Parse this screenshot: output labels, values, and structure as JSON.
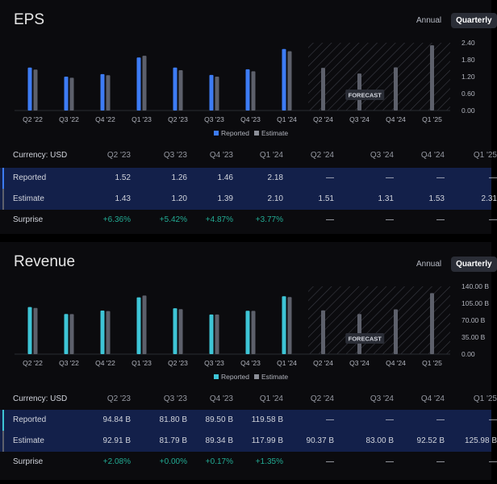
{
  "eps": {
    "title": "EPS",
    "toggle": {
      "annual": "Annual",
      "quarterly": "Quarterly"
    },
    "legend": {
      "reported": "Reported",
      "estimate": "Estimate"
    },
    "forecast_label": "FORECAST",
    "y_ticks": [
      "2.40",
      "1.80",
      "1.20",
      "0.60",
      "0.00"
    ],
    "table": {
      "currency": "Currency: USD",
      "columns": [
        "Q2 '23",
        "Q3 '23",
        "Q4 '23",
        "Q1 '24",
        "Q2 '24",
        "Q3 '24",
        "Q4 '24",
        "Q1 '25"
      ],
      "rows": [
        {
          "label": "Reported",
          "cells": [
            "1.52",
            "1.26",
            "1.46",
            "2.18",
            "—",
            "—",
            "—",
            "—"
          ]
        },
        {
          "label": "Estimate",
          "cells": [
            "1.43",
            "1.20",
            "1.39",
            "2.10",
            "1.51",
            "1.31",
            "1.53",
            "2.31"
          ]
        },
        {
          "label": "Surprise",
          "cells": [
            "+6.36%",
            "+5.42%",
            "+4.87%",
            "+3.77%",
            "—",
            "—",
            "—",
            "—"
          ]
        }
      ]
    }
  },
  "revenue": {
    "title": "Revenue",
    "toggle": {
      "annual": "Annual",
      "quarterly": "Quarterly"
    },
    "legend": {
      "reported": "Reported",
      "estimate": "Estimate"
    },
    "forecast_label": "FORECAST",
    "y_ticks": [
      "140.00 B",
      "105.00 B",
      "70.00 B",
      "35.00 B",
      "0.00"
    ],
    "table": {
      "currency": "Currency: USD",
      "columns": [
        "Q2 '23",
        "Q3 '23",
        "Q4 '23",
        "Q1 '24",
        "Q2 '24",
        "Q3 '24",
        "Q4 '24",
        "Q1 '25"
      ],
      "rows": [
        {
          "label": "Reported",
          "cells": [
            "94.84 B",
            "81.80 B",
            "89.50 B",
            "119.58 B",
            "—",
            "—",
            "—",
            "—"
          ]
        },
        {
          "label": "Estimate",
          "cells": [
            "92.91 B",
            "81.79 B",
            "89.34 B",
            "117.99 B",
            "90.37 B",
            "83.00 B",
            "92.52 B",
            "125.98 B"
          ]
        },
        {
          "label": "Surprise",
          "cells": [
            "+2.08%",
            "+0.00%",
            "+0.17%",
            "+1.35%",
            "—",
            "—",
            "—",
            "—"
          ]
        }
      ]
    }
  },
  "colors": {
    "eps_reported": "#3d7cf5",
    "revenue_reported": "#3ec5d6",
    "estimate": "#5d606b",
    "positive": "#22ab94",
    "row_highlight": "#13204a"
  },
  "chart_data": [
    {
      "type": "bar",
      "title": "EPS",
      "categories": [
        "Q2 '22",
        "Q3 '22",
        "Q4 '22",
        "Q1 '23",
        "Q2 '23",
        "Q3 '23",
        "Q4 '23",
        "Q1 '24",
        "Q2 '24",
        "Q3 '24",
        "Q4 '24",
        "Q1 '25"
      ],
      "series": [
        {
          "name": "Reported",
          "values": [
            1.52,
            1.2,
            1.29,
            1.88,
            1.52,
            1.26,
            1.46,
            2.18,
            null,
            null,
            null,
            null
          ]
        },
        {
          "name": "Estimate",
          "values": [
            1.45,
            1.16,
            1.25,
            1.94,
            1.43,
            1.2,
            1.39,
            2.1,
            1.51,
            1.31,
            1.53,
            2.31
          ]
        }
      ],
      "ylim": [
        0,
        2.4
      ],
      "forecast_from": "Q2 '24",
      "legend_position": "bottom-center"
    },
    {
      "type": "bar",
      "title": "Revenue",
      "categories": [
        "Q2 '22",
        "Q3 '22",
        "Q4 '22",
        "Q1 '23",
        "Q2 '23",
        "Q3 '23",
        "Q4 '23",
        "Q1 '24",
        "Q2 '24",
        "Q3 '24",
        "Q4 '24",
        "Q1 '25"
      ],
      "series": [
        {
          "name": "Reported",
          "values": [
            97.3,
            83.0,
            90.1,
            117.2,
            94.8,
            81.8,
            89.5,
            119.6,
            null,
            null,
            null,
            null
          ]
        },
        {
          "name": "Estimate",
          "values": [
            95.5,
            82.8,
            88.9,
            121.1,
            92.9,
            81.8,
            89.3,
            118.0,
            90.4,
            83.0,
            92.5,
            126.0
          ]
        }
      ],
      "ylim": [
        0,
        140
      ],
      "forecast_from": "Q2 '24",
      "legend_position": "bottom-center"
    }
  ]
}
